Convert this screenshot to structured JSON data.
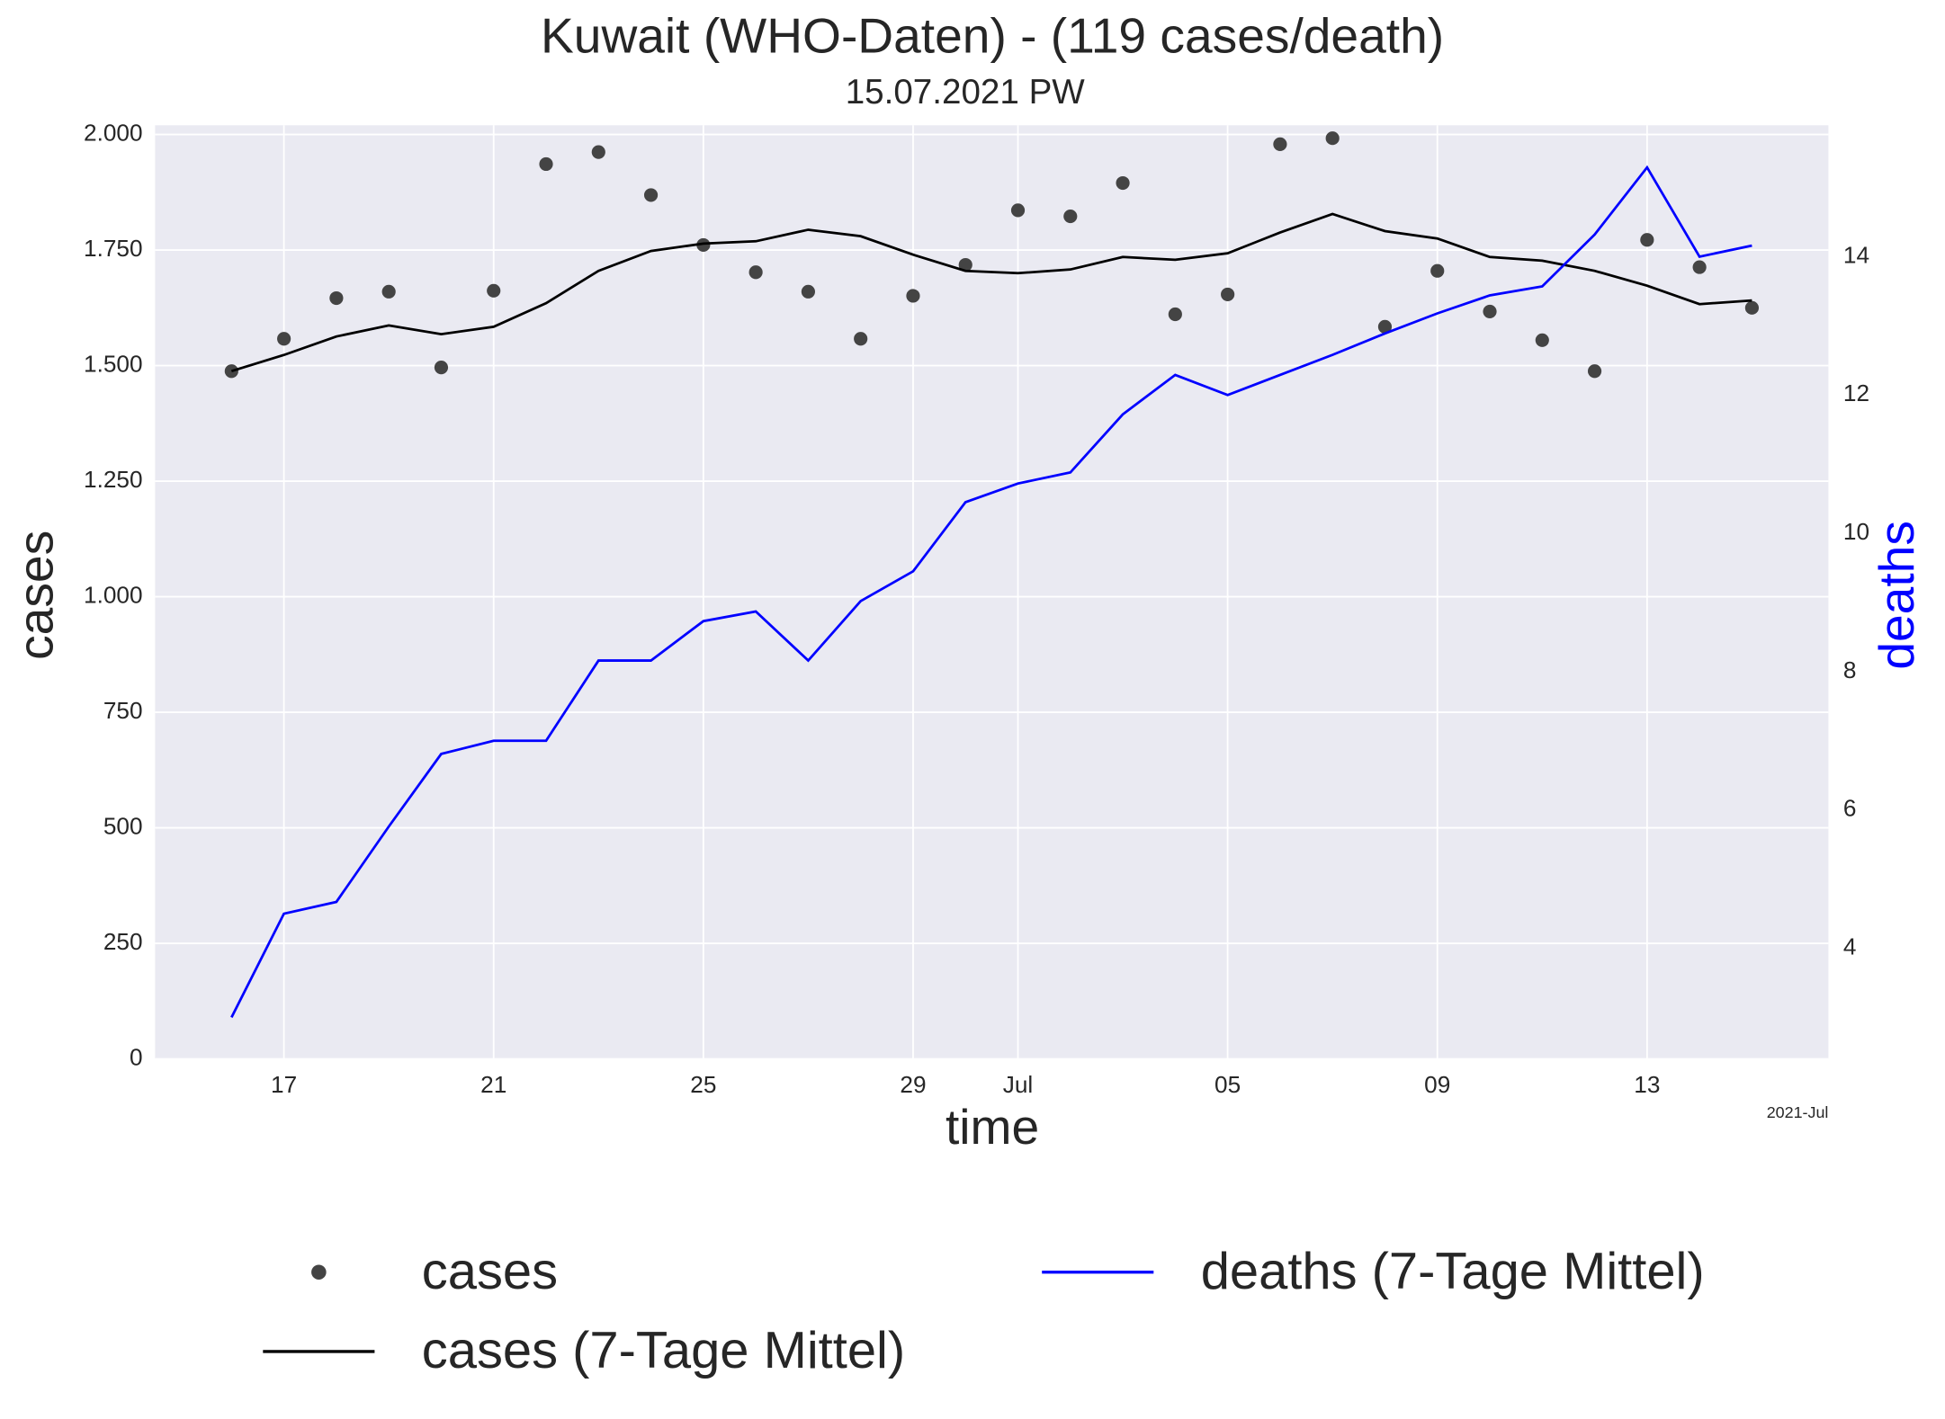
{
  "chart_data": {
    "type": "line",
    "title": "Kuwait (WHO-Daten) - (119 cases/death)",
    "subtitle": "15.07.2021 PW",
    "x_label": "time",
    "y_label": "cases",
    "y2_label": "deaths",
    "x_offset_label": "2021-Jul",
    "x": [
      "2021-06-16",
      "2021-06-17",
      "2021-06-18",
      "2021-06-19",
      "2021-06-20",
      "2021-06-21",
      "2021-06-22",
      "2021-06-23",
      "2021-06-24",
      "2021-06-25",
      "2021-06-26",
      "2021-06-27",
      "2021-06-28",
      "2021-06-29",
      "2021-06-30",
      "2021-07-01",
      "2021-07-02",
      "2021-07-03",
      "2021-07-04",
      "2021-07-05",
      "2021-07-06",
      "2021-07-07",
      "2021-07-08",
      "2021-07-09",
      "2021-07-10",
      "2021-07-11",
      "2021-07-12",
      "2021-07-13",
      "2021-07-14",
      "2021-07-15"
    ],
    "xlim": [
      "2021-06-14T13:00",
      "2021-07-16T11:00"
    ],
    "xticks": [
      {
        "value": "2021-06-17",
        "label": "17"
      },
      {
        "value": "2021-06-21",
        "label": "21"
      },
      {
        "value": "2021-06-25",
        "label": "25"
      },
      {
        "value": "2021-06-29",
        "label": "29"
      },
      {
        "value": "2021-07-01",
        "label": "Jul"
      },
      {
        "value": "2021-07-05",
        "label": "05"
      },
      {
        "value": "2021-07-09",
        "label": "09"
      },
      {
        "value": "2021-07-13",
        "label": "13"
      }
    ],
    "ylim": [
      0,
      2020
    ],
    "yticks": [
      0,
      250,
      500,
      750,
      {
        "value": 1000,
        "label": "1.000"
      },
      {
        "value": 1250,
        "label": "1.250"
      },
      {
        "value": 1500,
        "label": "1.500"
      },
      {
        "value": 1750,
        "label": "1.750"
      },
      {
        "value": 2000,
        "label": "2.000"
      }
    ],
    "y2lim": [
      2.4,
      15.9
    ],
    "y2ticks": [
      4,
      6,
      8,
      10,
      12,
      14
    ],
    "y2_label_color": "#0000ff",
    "grid": true,
    "background": "#eaeaf2",
    "series": [
      {
        "name": "cases",
        "type": "scatter",
        "color": "#444444",
        "values": [
          1488,
          1558,
          1646,
          1660,
          1496,
          1662,
          1936,
          1962,
          1869,
          1761,
          1702,
          1660,
          1558,
          1651,
          1718,
          1836,
          1823,
          1895,
          1611,
          1654,
          1979,
          1992,
          1584,
          1705,
          1617,
          1555,
          1488,
          1772,
          1713,
          1625
        ]
      },
      {
        "name": "cases (7-Tage Mittel)",
        "type": "line",
        "color": "#000000",
        "values": [
          1488,
          1523,
          1563,
          1587,
          1568,
          1584,
          1635,
          1705,
          1748,
          1764,
          1769,
          1794,
          1780,
          1740,
          1705,
          1700,
          1708,
          1735,
          1729,
          1743,
          1788,
          1828,
          1791,
          1775,
          1735,
          1727,
          1705,
          1673,
          1633,
          1641
        ]
      },
      {
        "name": "deaths (7-Tage Mittel)",
        "type": "line",
        "color": "#0000ff",
        "axis": "y2",
        "values": [
          3.0,
          4.5,
          4.67,
          5.76,
          6.81,
          7.0,
          7.0,
          8.16,
          8.16,
          8.73,
          8.87,
          8.16,
          9.02,
          9.45,
          10.45,
          10.72,
          10.88,
          11.72,
          12.29,
          12.0,
          12.29,
          12.58,
          12.89,
          13.18,
          13.44,
          13.57,
          14.32,
          15.29,
          14.0,
          14.16
        ]
      }
    ]
  }
}
